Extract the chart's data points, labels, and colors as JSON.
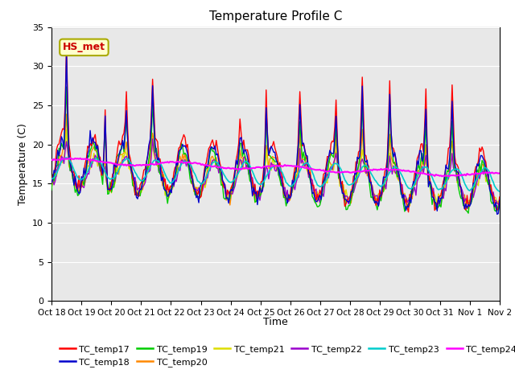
{
  "title": "Temperature Profile C",
  "xlabel": "Time",
  "ylabel": "Temperature (C)",
  "ylim": [
    0,
    35
  ],
  "annotation_text": "HS_met",
  "annotation_bg": "#ffffcc",
  "annotation_border": "#aaaa00",
  "annotation_text_color": "#cc0000",
  "plot_bg": "#e8e8e8",
  "series_colors": {
    "TC_temp17": "#ff0000",
    "TC_temp18": "#0000cc",
    "TC_temp19": "#00cc00",
    "TC_temp20": "#ff8800",
    "TC_temp21": "#dddd00",
    "TC_temp22": "#9900cc",
    "TC_temp23": "#00cccc",
    "TC_temp24": "#ff00ff"
  },
  "x_tick_labels": [
    "Oct 18",
    "Oct 19",
    "Oct 20",
    "Oct 21",
    "Oct 22",
    "Oct 23",
    "Oct 24",
    "Oct 25",
    "Oct 26",
    "Oct 27",
    "Oct 28",
    "Oct 29",
    "Oct 30",
    "Oct 31",
    "Nov 1",
    "Nov 2"
  ],
  "legend_entries": [
    "TC_temp17",
    "TC_temp18",
    "TC_temp19",
    "TC_temp20",
    "TC_temp21",
    "TC_temp22",
    "TC_temp23",
    "TC_temp24"
  ],
  "yticks": [
    0,
    5,
    10,
    15,
    20,
    25,
    30,
    35
  ]
}
